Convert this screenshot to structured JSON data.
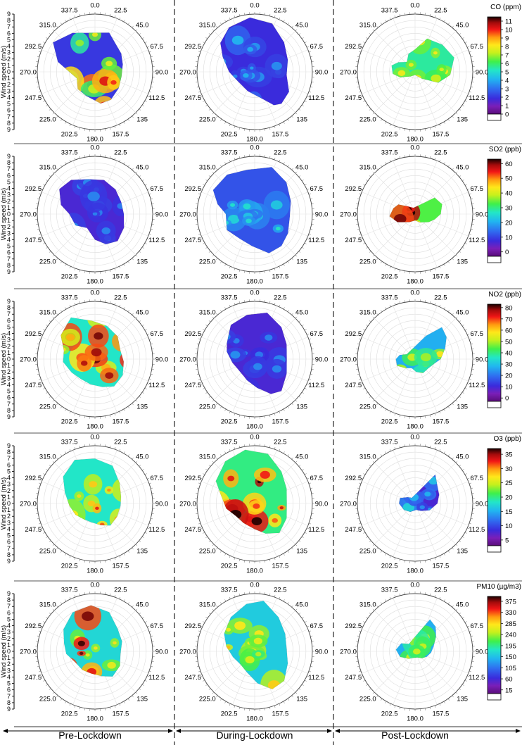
{
  "figure": {
    "periods": [
      "Pre-Lockdown",
      "During-Lockdown",
      "Post-Lockdown"
    ],
    "wind_axis_label": "Wind speed (m/s)",
    "wind_ticks": [
      "9",
      "8",
      "7",
      "6",
      "5",
      "4",
      "3",
      "2",
      "1",
      "0",
      "1",
      "2",
      "3",
      "4",
      "5",
      "6",
      "7",
      "8",
      "9"
    ],
    "direction_labels": [
      "0.0",
      "22.5",
      "45.0",
      "67.5",
      "90.0",
      "112.5",
      "135",
      "157.5",
      "180.0",
      "202.5",
      "225.0",
      "247.5",
      "270.0",
      "292.5",
      "315.0",
      "337.5"
    ],
    "direction_angles": [
      0,
      22.5,
      45,
      67.5,
      90,
      112.5,
      135,
      157.5,
      180,
      202.5,
      225,
      247.5,
      270,
      292.5,
      315,
      337.5
    ]
  },
  "chart_data": [
    {
      "type": "heatmap",
      "subtype": "polar bivariate plot",
      "pollutant": "CO",
      "colorbar_title": "CO (ppm)",
      "colorbar_ticks": [
        "11",
        "10",
        "9",
        "8",
        "7",
        "6",
        "5",
        "4",
        "3",
        "2",
        "1",
        "0"
      ],
      "colorbar_range": [
        0,
        11.5
      ],
      "periods": [
        "Pre-Lockdown",
        "During-Lockdown",
        "Post-Lockdown"
      ],
      "shape": {
        "pre": {
          "directions": [
            305,
            330,
            20,
            55,
            75,
            100,
            125,
            150,
            170,
            200,
            225,
            250,
            285
          ],
          "max_wind": [
            8.0,
            7.0,
            6.5,
            5.0,
            4.5,
            4.2,
            4.5,
            5.0,
            5.0,
            4.0,
            3.8,
            3.0,
            6.0
          ],
          "base": 0.18,
          "hot": 0.95
        },
        "during": {
          "directions": [
            310,
            330,
            355,
            20,
            45,
            70,
            95,
            120,
            140,
            150,
            170,
            200,
            240,
            270,
            295
          ],
          "max_wind": [
            7.0,
            8.0,
            8.5,
            8.0,
            6.5,
            5.5,
            5.0,
            6.2,
            6.5,
            6.0,
            4.0,
            3.2,
            3.0,
            4.0,
            5.5
          ],
          "base": 0.16,
          "hot": 0.25
        },
        "post": {
          "directions": [
            20,
            45,
            70,
            95,
            115,
            135,
            180,
            225,
            250,
            265,
            285,
            300,
            320,
            340,
            0
          ],
          "max_wind": [
            5.5,
            6.0,
            6.5,
            5.5,
            4.0,
            1.5,
            0.5,
            1.0,
            2.5,
            3.5,
            3.8,
            3.0,
            2.0,
            3.0,
            3.5
          ],
          "base": 0.48,
          "hot": 0.6
        }
      }
    },
    {
      "type": "heatmap",
      "subtype": "polar bivariate plot",
      "pollutant": "SO2",
      "colorbar_title": "SO2 (ppb)",
      "colorbar_ticks": [
        "60",
        "50",
        "40",
        "30",
        "20",
        "10",
        "0"
      ],
      "colorbar_range": [
        -3,
        63
      ],
      "periods": [
        "Pre-Lockdown",
        "During-Lockdown",
        "Post-Lockdown"
      ],
      "shape": {
        "pre": {
          "directions": [
            305,
            325,
            350,
            15,
            40,
            65,
            90,
            115,
            140,
            160,
            180,
            210,
            240,
            270,
            285
          ],
          "max_wind": [
            6.8,
            6.5,
            5.5,
            5.5,
            5.0,
            4.5,
            4.5,
            5.0,
            5.5,
            5.0,
            4.0,
            2.5,
            3.5,
            4.0,
            5.5
          ],
          "base": 0.14,
          "hot": 0.2
        },
        "during": {
          "directions": [
            300,
            325,
            350,
            20,
            45,
            70,
            95,
            120,
            140,
            160,
            185,
            210,
            240,
            270,
            285
          ],
          "max_wind": [
            7.5,
            7.5,
            7.0,
            7.8,
            7.0,
            6.0,
            5.5,
            6.0,
            6.5,
            6.5,
            5.0,
            4.5,
            5.0,
            4.5,
            6.0
          ],
          "base": 0.22,
          "hot": 0.35
        },
        "post": {
          "directions": [
            35,
            50,
            70,
            90,
            105,
            120,
            150,
            180,
            215,
            245,
            265,
            285,
            300,
            320,
            345
          ],
          "max_wind": [
            2.0,
            4.0,
            4.5,
            4.0,
            3.2,
            2.5,
            1.5,
            1.0,
            1.5,
            3.0,
            4.0,
            3.5,
            3.0,
            1.5,
            1.0
          ],
          "base": 0.55,
          "hot": 0.95
        }
      }
    },
    {
      "type": "heatmap",
      "subtype": "polar bivariate plot",
      "pollutant": "NO2",
      "colorbar_title": "NO2 (ppb)",
      "colorbar_ticks": [
        "80",
        "70",
        "60",
        "50",
        "40",
        "30",
        "20",
        "10",
        "0"
      ],
      "colorbar_range": [
        -3,
        83
      ],
      "periods": [
        "Pre-Lockdown",
        "During-Lockdown",
        "Post-Lockdown"
      ],
      "shape": {
        "pre": {
          "directions": [
            305,
            330,
            355,
            20,
            45,
            70,
            95,
            120,
            145,
            165,
            190,
            215,
            240,
            265,
            285
          ],
          "max_wind": [
            6.5,
            7.5,
            6.0,
            5.5,
            5.0,
            4.2,
            4.5,
            5.0,
            5.2,
            4.5,
            4.0,
            3.8,
            4.2,
            5.0,
            5.0
          ],
          "base": 0.45,
          "hot": 0.9
        },
        "during": {
          "directions": [
            300,
            325,
            350,
            15,
            40,
            65,
            90,
            115,
            140,
            155,
            175,
            200,
            230,
            260,
            285
          ],
          "max_wind": [
            5.0,
            6.5,
            7.0,
            7.5,
            6.5,
            5.5,
            5.0,
            5.5,
            6.5,
            6.0,
            4.5,
            3.5,
            3.0,
            3.5,
            4.5
          ],
          "base": 0.14,
          "hot": 0.2
        },
        "post": {
          "directions": [
            25,
            40,
            55,
            70,
            90,
            105,
            125,
            150,
            175,
            200,
            225,
            250,
            270,
            285,
            300
          ],
          "max_wind": [
            4.0,
            6.5,
            6.0,
            5.0,
            4.0,
            3.0,
            2.5,
            2.5,
            2.0,
            1.5,
            2.0,
            3.0,
            3.0,
            2.5,
            1.5
          ],
          "base": 0.35,
          "hot": 0.7
        }
      }
    },
    {
      "type": "heatmap",
      "subtype": "polar bivariate plot",
      "pollutant": "O3",
      "colorbar_title": "O3 (ppb)",
      "colorbar_ticks": [
        "35",
        "30",
        "25",
        "20",
        "15",
        "10",
        "5"
      ],
      "colorbar_range": [
        3,
        37
      ],
      "periods": [
        "Pre-Lockdown",
        "During-Lockdown",
        "Post-Lockdown"
      ],
      "shape": {
        "pre": {
          "directions": [
            310,
            335,
            0,
            25,
            50,
            75,
            95,
            120,
            145,
            165,
            190,
            215,
            240,
            265,
            290
          ],
          "max_wind": [
            6.5,
            7.5,
            7.0,
            6.5,
            5.0,
            4.2,
            4.0,
            4.0,
            4.2,
            3.5,
            3.0,
            3.0,
            3.5,
            4.0,
            5.0
          ],
          "base": 0.45,
          "hot": 0.8
        },
        "during": {
          "directions": [
            300,
            325,
            350,
            15,
            40,
            65,
            90,
            115,
            140,
            160,
            180,
            210,
            235,
            260,
            285
          ],
          "max_wind": [
            7.0,
            8.0,
            8.5,
            8.0,
            6.5,
            5.5,
            5.0,
            5.5,
            6.0,
            5.0,
            4.0,
            3.5,
            3.5,
            4.5,
            5.5
          ],
          "base": 0.5,
          "hot": 0.95
        },
        "post": {
          "directions": [
            35,
            50,
            70,
            90,
            115,
            140,
            170,
            210,
            240,
            270,
            290,
            310,
            330
          ],
          "max_wind": [
            5.5,
            4.5,
            4.0,
            3.5,
            2.5,
            1.5,
            1.0,
            1.5,
            2.0,
            2.5,
            2.5,
            1.5,
            1.0
          ],
          "base": 0.14,
          "hot": 0.3
        }
      }
    },
    {
      "type": "heatmap",
      "subtype": "polar bivariate plot",
      "pollutant": "PM10",
      "colorbar_title": "PM10 (µg/m3)",
      "colorbar_ticks": [
        "375",
        "330",
        "285",
        "240",
        "195",
        "150",
        "105",
        "60",
        "15"
      ],
      "colorbar_range": [
        0,
        395
      ],
      "periods": [
        "Pre-Lockdown",
        "During-Lockdown",
        "Post-Lockdown"
      ],
      "shape": {
        "pre": {
          "directions": [
            305,
            330,
            355,
            20,
            45,
            70,
            95,
            120,
            145,
            165,
            190,
            215,
            240,
            265,
            285
          ],
          "max_wind": [
            6.0,
            7.0,
            7.2,
            6.5,
            5.0,
            4.5,
            4.0,
            4.5,
            4.8,
            4.0,
            3.5,
            3.5,
            3.5,
            4.5,
            5.0
          ],
          "base": 0.42,
          "hot": 0.9
        },
        "during": {
          "directions": [
            300,
            325,
            350,
            10,
            35,
            60,
            85,
            110,
            135,
            155,
            175,
            200,
            225,
            255,
            280
          ],
          "max_wind": [
            5.5,
            6.5,
            7.5,
            8.0,
            6.5,
            5.5,
            5.0,
            5.5,
            6.5,
            6.5,
            5.0,
            3.5,
            3.0,
            3.5,
            4.5
          ],
          "base": 0.4,
          "hot": 0.65
        },
        "post": {
          "directions": [
            25,
            40,
            55,
            75,
            95,
            115,
            135,
            160,
            190,
            220,
            250,
            275,
            300,
            320
          ],
          "max_wind": [
            5.5,
            5.0,
            4.0,
            3.0,
            2.5,
            2.0,
            1.5,
            1.0,
            1.0,
            1.5,
            2.5,
            3.0,
            2.5,
            1.5
          ],
          "base": 0.35,
          "hot": 0.55
        }
      }
    }
  ]
}
